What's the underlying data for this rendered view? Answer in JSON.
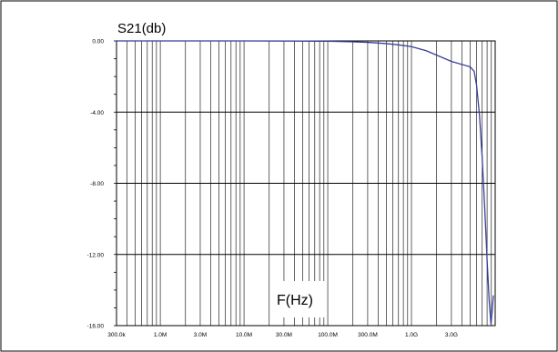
{
  "chart_data": {
    "type": "line",
    "ylabel": "S21(db)",
    "xlabel": "F(Hz)",
    "x_scale": "log",
    "xlim": [
      300000,
      10000000000
    ],
    "ylim": [
      -16,
      0
    ],
    "x_ticks": [
      {
        "value": 300000,
        "label": "300.0k"
      },
      {
        "value": 1000000,
        "label": "1.0M"
      },
      {
        "value": 3000000,
        "label": "3.0M"
      },
      {
        "value": 10000000,
        "label": "10.0M"
      },
      {
        "value": 30000000,
        "label": "30.0M"
      },
      {
        "value": 100000000,
        "label": "100.0M"
      },
      {
        "value": 300000000,
        "label": "300.0M"
      },
      {
        "value": 1000000000,
        "label": "1.0G"
      },
      {
        "value": 3000000000,
        "label": "3.0G"
      }
    ],
    "y_ticks": [
      {
        "value": 0,
        "label": "0.00"
      },
      {
        "value": -4,
        "label": "-4.00"
      },
      {
        "value": -8,
        "label": "-8.00"
      },
      {
        "value": -12,
        "label": "-12.00"
      },
      {
        "value": -16,
        "label": "-16.00"
      }
    ],
    "grid": true,
    "series": [
      {
        "color": "#3a3f9a",
        "x": [
          300000,
          10000000,
          50000000,
          100000000,
          200000000,
          300000000,
          500000000,
          700000000,
          1000000000,
          1500000000,
          2000000000,
          3000000000,
          4000000000,
          5000000000,
          5600000000,
          6000000000,
          6500000000,
          7000000000,
          7500000000,
          8000000000,
          8500000000,
          8900000000,
          9200000000,
          9500000000
        ],
        "y": [
          0,
          0,
          -0.01,
          -0.02,
          -0.05,
          -0.08,
          -0.15,
          -0.22,
          -0.32,
          -0.55,
          -0.8,
          -1.15,
          -1.32,
          -1.45,
          -1.7,
          -2.5,
          -4.2,
          -6.6,
          -9.4,
          -12.3,
          -14.7,
          -15.9,
          -15.2,
          -14.3
        ]
      }
    ]
  }
}
